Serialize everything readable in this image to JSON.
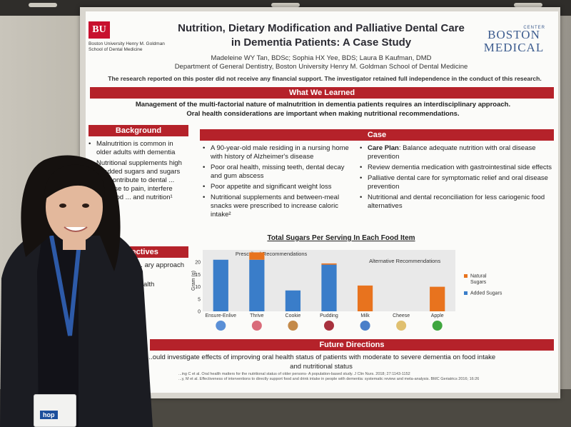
{
  "poster": {
    "bu_logo": "BU",
    "bu_name": "Boston University Henry M. Goldman School of Dental Medicine",
    "title_line1": "Nutrition, Dietary Modification and Palliative Dental Care",
    "title_line2": "in Dementia Patients: A Case Study",
    "authors": "Madeleine WY Tan, BDSc; Sophia HX Yee, BDS; Laura B Kaufman, DMD",
    "department": "Department of General Dentistry, Boston University Henry M. Goldman School of Dental Medicine",
    "disclaimer": "The research reported on this poster did not receive any financial support. The investigator retained full independence in the conduct of this research.",
    "bmc_small": "CENTER",
    "bmc_line1": "BOSTON",
    "bmc_line2": "MEDICAL",
    "learned_heading": "What We Learned",
    "learned_line1": "Management of the multi-factorial nature of malnutrition in dementia patients requires an interdisciplinary approach.",
    "learned_line2": "Oral health considerations are important when making nutritional recommendations.",
    "background_heading": "Background",
    "background_items": [
      "Malnutrition is common in older adults with dementia",
      "Nutritional supplements high in added sugars and sugars can contribute to dental ... give rise to pain, interfere with food ... and nutrition¹"
    ],
    "objectives_heading": "Objectives",
    "objectives_items": [
      "... benefits of ... ary approach ... malnutrition",
      "... general ... health"
    ],
    "case_heading": "Case",
    "case_left": [
      "A 90-year-old male residing in a nursing home with history of Alzheimer's disease",
      "Poor oral health, missing teeth, dental decay and gum abscess",
      "Poor appetite and significant weight loss",
      "Nutritional supplements and between-meal snacks were prescribed to increase caloric intake²"
    ],
    "case_right": [
      {
        "bold": "Care Plan",
        "text": ": Balance adequate nutrition with oral disease prevention"
      },
      {
        "bold": "",
        "text": "Review dementia medication with gastrointestinal side effects"
      },
      {
        "bold": "",
        "text": "Palliative dental care for symptomatic relief and oral disease prevention"
      },
      {
        "bold": "",
        "text": "Nutritional and dental reconciliation for less cariogenic food alternatives"
      }
    ],
    "future_heading": "Future Directions",
    "future_line1": "...ould investigate effects of improving oral health status of patients with moderate to severe dementia on food intake",
    "future_line2": "and nutritional status",
    "ref1": "...ing C et al. Oral health matters for the nutritional status of older persons- A population-based study. J Clin Nurs. 2018; 27:1143-1152",
    "ref2": "...y, M et al. Effectiveness of interventions to directly support food and drink intake in people with dementia: systematic review and meta-analysis. BMC Geriatrics 2016; 16:26"
  },
  "badge_text": "hop",
  "colors": {
    "banner": "#b5222a",
    "added_sugars": "#3a7dc9",
    "natural_sugars": "#e8731e"
  },
  "chart_data": {
    "type": "bar",
    "title": "Total Sugars Per Serving In Each Food Item",
    "ylabel": "Gram (g)",
    "ylim": [
      0,
      25
    ],
    "yticks": [
      0,
      5,
      10,
      15,
      20
    ],
    "categories": [
      "Ensure-Enlive",
      "Thrive",
      "Cookie",
      "Pudding",
      "Milk",
      "Cheese",
      "Apple"
    ],
    "group_labels": [
      "Prescribed Recommendations",
      "Alternative Recommendations"
    ],
    "series": [
      {
        "name": "Added Sugars",
        "values": [
          21,
          21,
          8.5,
          19,
          0,
          0,
          0
        ]
      },
      {
        "name": "Natural Sugars",
        "values": [
          0,
          3,
          0,
          0.5,
          10.5,
          0,
          10
        ]
      }
    ],
    "legend_position": "right",
    "grid": false
  }
}
